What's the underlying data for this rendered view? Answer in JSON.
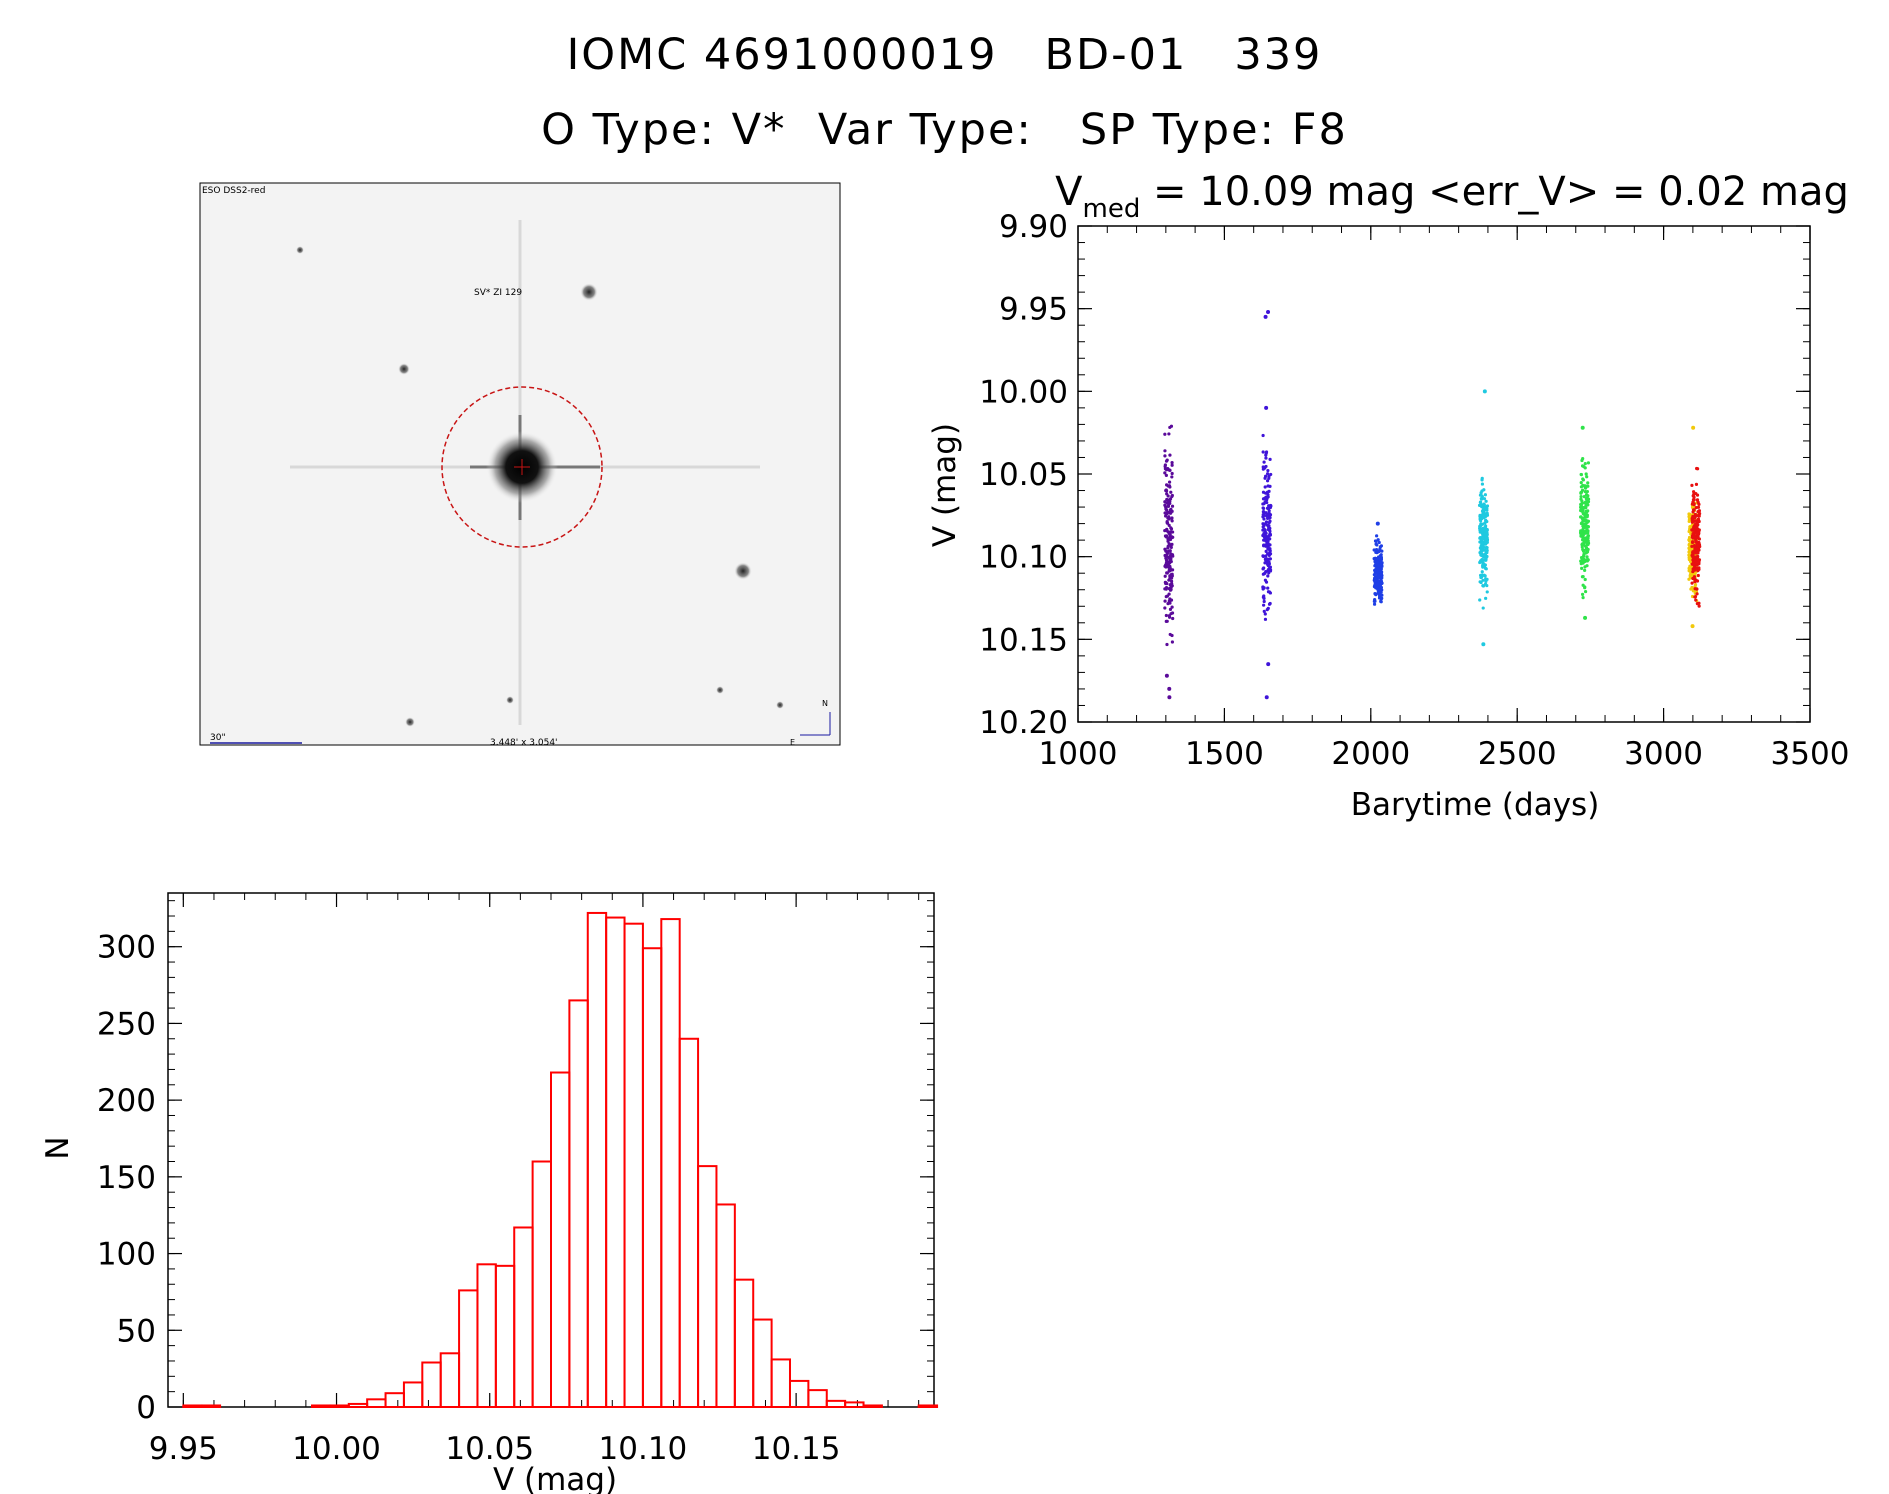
{
  "header": {
    "title_line1": "IOMC 4691000019   BD-01   339",
    "title_line2": "O Type: V*  Var Type:   SP Type: F8"
  },
  "image_panel": {
    "survey_label": "ESO DSS2-red",
    "object_label": "SV* ZI 129",
    "scale_label": "30\"",
    "fov_label": "3.448' x 3.054'",
    "compass_n": "N",
    "compass_e": "E"
  },
  "chart_data": [
    {
      "type": "scatter",
      "title_main": "V",
      "title_sub": "med",
      "title_rest": " = 10.09 mag <err_V> = 0.02 mag",
      "xlabel": "Barytime (days)",
      "ylabel": "V (mag)",
      "xlim": [
        1000,
        3500
      ],
      "ylim": [
        10.2,
        9.9
      ],
      "y_inverted": true,
      "xticks": [
        "1000",
        "1500",
        "2000",
        "2500",
        "3000",
        "3500"
      ],
      "yticks": [
        "9.90",
        "9.95",
        "10.00",
        "10.05",
        "10.10",
        "10.15",
        "10.20"
      ],
      "groups": [
        {
          "x": 1310,
          "ymin": 10.012,
          "ymax": 10.165,
          "color": "#5a0a9a",
          "outliers": [
            10.18,
            10.185,
            10.172
          ]
        },
        {
          "x": 1645,
          "ymin": 10.017,
          "ymax": 10.155,
          "color": "#3f14d9",
          "outliers": [
            9.952,
            9.955,
            10.01,
            10.185,
            10.165
          ]
        },
        {
          "x": 2025,
          "ymin": 10.083,
          "ymax": 10.137,
          "color": "#1f3fe6",
          "outliers": [
            10.08
          ]
        },
        {
          "x": 2385,
          "ymin": 10.045,
          "ymax": 10.135,
          "color": "#1fc9e0",
          "outliers": [
            10.0,
            10.153
          ]
        },
        {
          "x": 2730,
          "ymin": 10.03,
          "ymax": 10.13,
          "color": "#2fe34a",
          "outliers": [
            10.022,
            10.137
          ]
        },
        {
          "x": 3100,
          "ymin": 10.057,
          "ymax": 10.132,
          "color": "#f2c90b",
          "outliers": [
            10.022,
            10.142
          ]
        },
        {
          "x": 3110,
          "ymin": 10.04,
          "ymax": 10.14,
          "color": "#e81010",
          "outliers": []
        }
      ]
    },
    {
      "type": "bar",
      "subtype": "histogram",
      "xlabel": "V (mag)",
      "ylabel": "N",
      "xlim": [
        9.945,
        10.195
      ],
      "ylim": [
        0,
        335
      ],
      "xticks": [
        "9.95",
        "10.00",
        "10.05",
        "10.10",
        "10.15"
      ],
      "yticks": [
        "0",
        "50",
        "100",
        "150",
        "200",
        "250",
        "300"
      ],
      "color": "#ff0000",
      "bin_start": 9.95,
      "bin_width": 0.006,
      "values": [
        1,
        1,
        0,
        0,
        0,
        0,
        0,
        1,
        1,
        2,
        5,
        9,
        16,
        29,
        35,
        76,
        93,
        92,
        117,
        160,
        218,
        265,
        322,
        319,
        315,
        299,
        318,
        240,
        157,
        132,
        83,
        57,
        31,
        17,
        11,
        4,
        3,
        1,
        0,
        0,
        1
      ]
    }
  ]
}
